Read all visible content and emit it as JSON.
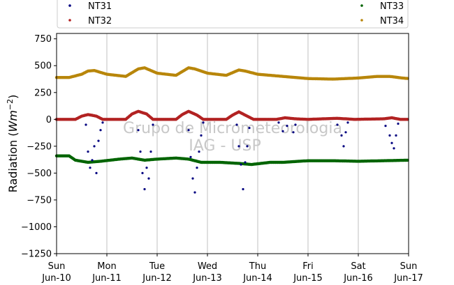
{
  "chart_data": {
    "type": "scatter",
    "ylabel": "Radiation",
    "ylabel_unit": "Wm",
    "ylabel_exp": "−2",
    "ylim": [
      -1250,
      800
    ],
    "yticks": [
      750,
      500,
      250,
      0,
      -250,
      -500,
      -750,
      -1000,
      -1250
    ],
    "ytick_labels": [
      "750",
      "500",
      "250",
      "0",
      "−250",
      "−500",
      "−750",
      "−1000",
      "−1250"
    ],
    "xlim": [
      "2007-06-10",
      "2007-06-17"
    ],
    "xtick_labels": [
      {
        "day": "Sun",
        "date": "Jun-10"
      },
      {
        "day": "Mon",
        "date": "Jun-11"
      },
      {
        "day": "Tue",
        "date": "Jun-12"
      },
      {
        "day": "Wed",
        "date": "Jun-13"
      },
      {
        "day": "Thu",
        "date": "Jun-14"
      },
      {
        "day": "Fri",
        "date": "Jun-15"
      },
      {
        "day": "Sat",
        "date": "Jun-16"
      },
      {
        "day": "Sun",
        "date": "Jun-17"
      }
    ],
    "grid": "vertical",
    "legend_placement": "top",
    "watermark": [
      "Grupo de Micrometeorologia",
      "IAG - USP"
    ],
    "series": [
      {
        "name": "NT31",
        "color": "#000080",
        "points": [
          [
            "2007-06-10 14:00",
            -50
          ],
          [
            "2007-06-10 15:00",
            -300
          ],
          [
            "2007-06-10 16:00",
            -450
          ],
          [
            "2007-06-10 17:00",
            -380
          ],
          [
            "2007-06-10 18:00",
            -250
          ],
          [
            "2007-06-10 19:00",
            -500
          ],
          [
            "2007-06-10 20:00",
            -200
          ],
          [
            "2007-06-10 21:00",
            -100
          ],
          [
            "2007-06-10 22:00",
            -30
          ],
          [
            "2007-06-11 15:00",
            -100
          ],
          [
            "2007-06-11 16:00",
            -300
          ],
          [
            "2007-06-11 17:00",
            -500
          ],
          [
            "2007-06-11 18:00",
            -650
          ],
          [
            "2007-06-11 19:00",
            -450
          ],
          [
            "2007-06-11 20:00",
            -550
          ],
          [
            "2007-06-11 21:00",
            -300
          ],
          [
            "2007-06-11 22:00",
            -50
          ],
          [
            "2007-06-12 15:00",
            -100
          ],
          [
            "2007-06-12 16:00",
            -350
          ],
          [
            "2007-06-12 17:00",
            -550
          ],
          [
            "2007-06-12 18:00",
            -680
          ],
          [
            "2007-06-12 19:00",
            -450
          ],
          [
            "2007-06-12 20:00",
            -300
          ],
          [
            "2007-06-12 21:00",
            -150
          ],
          [
            "2007-06-12 22:00",
            -30
          ],
          [
            "2007-06-13 14:00",
            -50
          ],
          [
            "2007-06-13 15:00",
            -250
          ],
          [
            "2007-06-13 16:00",
            -420
          ],
          [
            "2007-06-13 17:00",
            -650
          ],
          [
            "2007-06-13 18:00",
            -400
          ],
          [
            "2007-06-13 19:00",
            -250
          ],
          [
            "2007-06-13 20:00",
            -80
          ],
          [
            "2007-06-14 10:00",
            -30
          ],
          [
            "2007-06-14 12:00",
            -110
          ],
          [
            "2007-06-14 14:00",
            -60
          ],
          [
            "2007-06-14 17:00",
            -120
          ],
          [
            "2007-06-14 18:00",
            -50
          ],
          [
            "2007-06-15 14:00",
            -50
          ],
          [
            "2007-06-15 16:00",
            -150
          ],
          [
            "2007-06-15 17:00",
            -250
          ],
          [
            "2007-06-15 18:00",
            -120
          ],
          [
            "2007-06-15 19:00",
            -30
          ],
          [
            "2007-06-16 13:00",
            -60
          ],
          [
            "2007-06-16 15:00",
            -150
          ],
          [
            "2007-06-16 16:00",
            -220
          ],
          [
            "2007-06-16 17:00",
            -270
          ],
          [
            "2007-06-16 18:00",
            -150
          ],
          [
            "2007-06-16 19:00",
            -40
          ]
        ]
      },
      {
        "name": "NT32",
        "color": "#b22222",
        "points": [
          [
            "2007-06-10 00:00",
            0
          ],
          [
            "2007-06-10 09:00",
            0
          ],
          [
            "2007-06-10 12:00",
            30
          ],
          [
            "2007-06-10 15:00",
            45
          ],
          [
            "2007-06-10 19:00",
            30
          ],
          [
            "2007-06-10 22:00",
            0
          ],
          [
            "2007-06-11 09:00",
            0
          ],
          [
            "2007-06-11 12:00",
            50
          ],
          [
            "2007-06-11 15:00",
            75
          ],
          [
            "2007-06-11 19:00",
            50
          ],
          [
            "2007-06-11 22:00",
            0
          ],
          [
            "2007-06-12 09:00",
            0
          ],
          [
            "2007-06-12 12:00",
            45
          ],
          [
            "2007-06-12 15:00",
            75
          ],
          [
            "2007-06-12 19:00",
            40
          ],
          [
            "2007-06-12 22:00",
            0
          ],
          [
            "2007-06-13 09:00",
            0
          ],
          [
            "2007-06-13 12:00",
            40
          ],
          [
            "2007-06-13 15:00",
            70
          ],
          [
            "2007-06-13 19:00",
            30
          ],
          [
            "2007-06-13 22:00",
            0
          ],
          [
            "2007-06-14 09:00",
            0
          ],
          [
            "2007-06-14 13:00",
            15
          ],
          [
            "2007-06-14 18:00",
            5
          ],
          [
            "2007-06-15 00:00",
            0
          ],
          [
            "2007-06-15 14:00",
            10
          ],
          [
            "2007-06-15 22:00",
            0
          ],
          [
            "2007-06-16 12:00",
            5
          ],
          [
            "2007-06-16 16:00",
            15
          ],
          [
            "2007-06-16 20:00",
            0
          ],
          [
            "2007-06-17 00:00",
            0
          ]
        ]
      },
      {
        "name": "NT33",
        "color": "#006400",
        "points": [
          [
            "2007-06-10 00:00",
            -340
          ],
          [
            "2007-06-10 06:00",
            -340
          ],
          [
            "2007-06-10 09:00",
            -380
          ],
          [
            "2007-06-10 15:00",
            -400
          ],
          [
            "2007-06-10 21:00",
            -390
          ],
          [
            "2007-06-11 06:00",
            -370
          ],
          [
            "2007-06-11 12:00",
            -360
          ],
          [
            "2007-06-11 18:00",
            -380
          ],
          [
            "2007-06-12 00:00",
            -370
          ],
          [
            "2007-06-12 09:00",
            -360
          ],
          [
            "2007-06-12 15:00",
            -370
          ],
          [
            "2007-06-12 21:00",
            -400
          ],
          [
            "2007-06-13 06:00",
            -400
          ],
          [
            "2007-06-13 15:00",
            -410
          ],
          [
            "2007-06-13 21:00",
            -420
          ],
          [
            "2007-06-14 06:00",
            -400
          ],
          [
            "2007-06-14 12:00",
            -400
          ],
          [
            "2007-06-15 00:00",
            -385
          ],
          [
            "2007-06-15 12:00",
            -385
          ],
          [
            "2007-06-16 00:00",
            -390
          ],
          [
            "2007-06-16 12:00",
            -385
          ],
          [
            "2007-06-17 00:00",
            -380
          ]
        ]
      },
      {
        "name": "NT34",
        "color": "#b8860b",
        "points": [
          [
            "2007-06-10 00:00",
            390
          ],
          [
            "2007-06-10 06:00",
            390
          ],
          [
            "2007-06-10 12:00",
            420
          ],
          [
            "2007-06-10 15:00",
            450
          ],
          [
            "2007-06-10 18:00",
            455
          ],
          [
            "2007-06-11 00:00",
            420
          ],
          [
            "2007-06-11 09:00",
            400
          ],
          [
            "2007-06-11 15:00",
            470
          ],
          [
            "2007-06-11 18:00",
            480
          ],
          [
            "2007-06-12 00:00",
            430
          ],
          [
            "2007-06-12 09:00",
            410
          ],
          [
            "2007-06-12 15:00",
            480
          ],
          [
            "2007-06-12 18:00",
            470
          ],
          [
            "2007-06-13 00:00",
            430
          ],
          [
            "2007-06-13 09:00",
            410
          ],
          [
            "2007-06-13 15:00",
            460
          ],
          [
            "2007-06-13 18:00",
            450
          ],
          [
            "2007-06-14 00:00",
            420
          ],
          [
            "2007-06-14 12:00",
            400
          ],
          [
            "2007-06-14 18:00",
            390
          ],
          [
            "2007-06-15 00:00",
            380
          ],
          [
            "2007-06-15 12:00",
            375
          ],
          [
            "2007-06-15 18:00",
            380
          ],
          [
            "2007-06-16 00:00",
            385
          ],
          [
            "2007-06-16 09:00",
            400
          ],
          [
            "2007-06-16 15:00",
            400
          ],
          [
            "2007-06-16 21:00",
            385
          ],
          [
            "2007-06-17 00:00",
            380
          ]
        ]
      }
    ]
  }
}
